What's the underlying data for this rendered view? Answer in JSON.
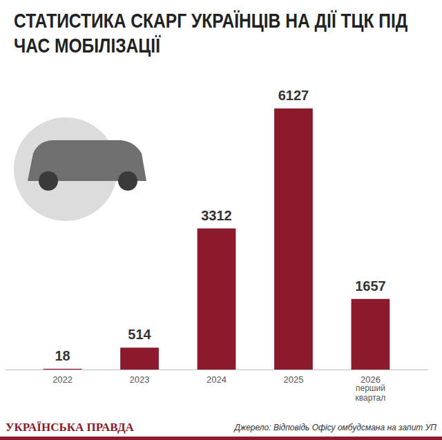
{
  "chart_data": {
    "type": "bar",
    "title": "СТАТИСТИКА СКАРГ УКРАЇНЦІВ НА ДІЇ ТЦК ПІД ЧАС МОБІЛІЗАЦІЇ",
    "categories": [
      "2022",
      "2023",
      "2024",
      "2025",
      "2026"
    ],
    "values": [
      18,
      514,
      3312,
      6127,
      1657
    ],
    "color": "#8b1a2c",
    "ylim": [
      0,
      6127
    ],
    "yticks": [],
    "grid": false,
    "data_labels": true,
    "tick_labels": "x",
    "annotations": [
      {
        "text": "перший квартал",
        "category": "2026"
      }
    ],
    "publisher": "УКРАЇНСЬКА ПРАВДА",
    "source": "Джерело: Відповідь Офісу омбудсмана на запит УП"
  }
}
